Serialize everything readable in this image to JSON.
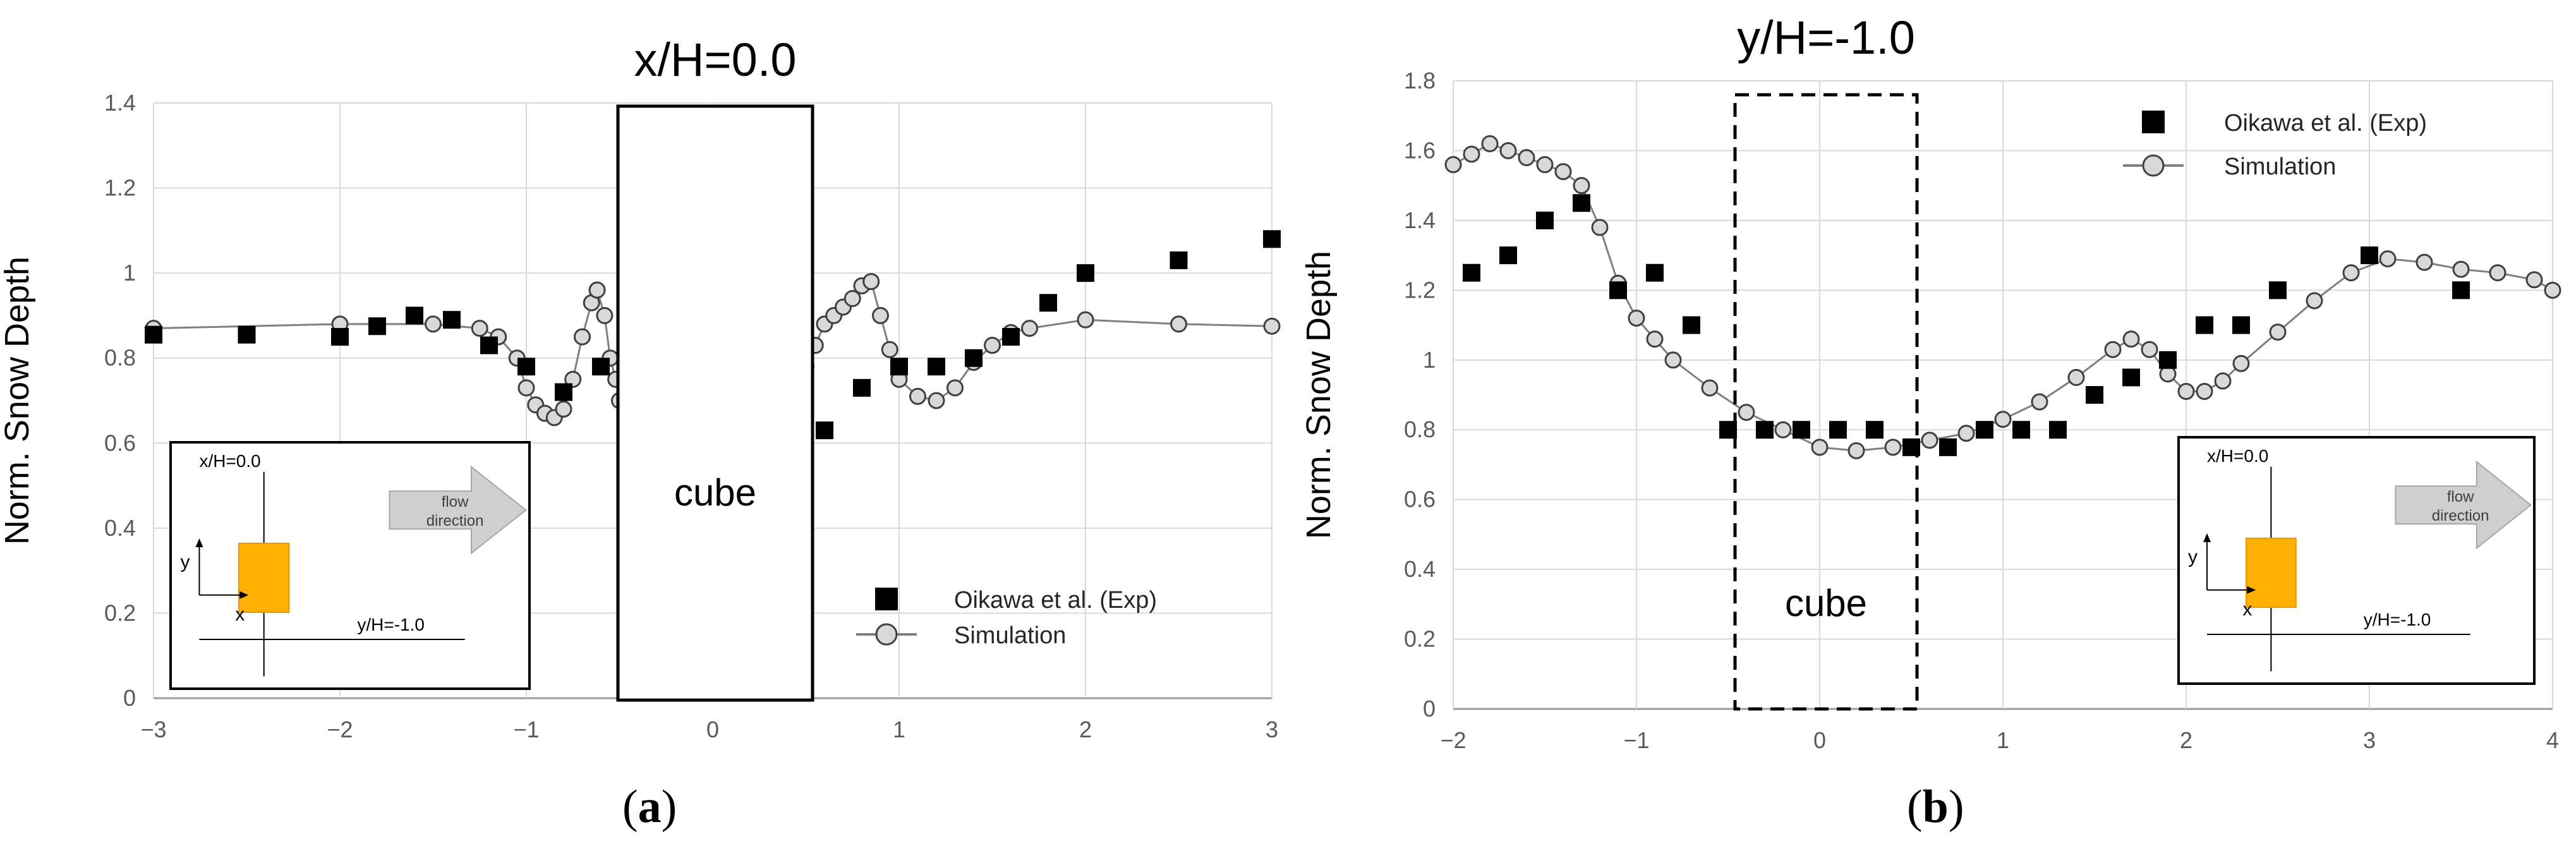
{
  "figure": {
    "panel_a_label": "a",
    "panel_b_label": "b"
  },
  "chart_data": [
    {
      "type": "scatter",
      "panel": "a",
      "title": "x/H=0.0",
      "xlabel": "",
      "ylabel": "Norm. Snow Depth",
      "xlim": [
        -3,
        3
      ],
      "ylim": [
        0,
        1.4
      ],
      "xticks": [
        -3,
        -2,
        -1,
        0,
        1,
        2,
        3
      ],
      "xtick_labels": [
        "−3",
        "−2",
        "−1",
        "0",
        "1",
        "2",
        "3"
      ],
      "yticks": [
        0,
        0.2,
        0.4,
        0.6,
        0.8,
        1,
        1.2,
        1.4
      ],
      "ytick_labels": [
        "0",
        "0.2",
        "0.4",
        "0.6",
        "0.8",
        "1",
        "1.2",
        "1.4"
      ],
      "grid": true,
      "legend": [
        {
          "name": "Oikawa et al. (Exp)",
          "marker": "square"
        },
        {
          "name": "Simulation",
          "marker": "circle-line"
        }
      ],
      "legend_position": "lower-right",
      "obstacle": {
        "label": "cube",
        "x_range": [
          -0.5,
          0.5
        ],
        "style": "solid"
      },
      "inset": {
        "vertical_label": "x/H=0.0",
        "horizontal_label": "y/H=-1.0",
        "y_axis": "y",
        "x_axis": "x",
        "arrow_label_1": "flow",
        "arrow_label_2": "direction"
      },
      "series": [
        {
          "name": "Oikawa et al. (Exp)",
          "x": [
            -3.0,
            -2.5,
            -2.0,
            -1.8,
            -1.6,
            -1.4,
            -1.2,
            -1.0,
            -0.8,
            -0.6,
            0.6,
            0.8,
            1.0,
            1.2,
            1.4,
            1.6,
            1.8,
            2.0,
            2.5,
            3.0
          ],
          "y": [
            0.855,
            0.855,
            0.85,
            0.875,
            0.9,
            0.89,
            0.83,
            0.78,
            0.72,
            0.78,
            0.63,
            0.73,
            0.78,
            0.78,
            0.8,
            0.85,
            0.93,
            1.0,
            1.03,
            1.08
          ]
        },
        {
          "name": "Simulation",
          "x": [
            -3.0,
            -2.0,
            -1.5,
            -1.25,
            -1.15,
            -1.05,
            -1.0,
            -0.95,
            -0.9,
            -0.85,
            -0.8,
            -0.75,
            -0.7,
            -0.65,
            -0.62,
            -0.58,
            -0.55,
            -0.52,
            -0.5,
            0.5,
            0.55,
            0.6,
            0.65,
            0.7,
            0.75,
            0.8,
            0.85,
            0.9,
            0.95,
            1.0,
            1.1,
            1.2,
            1.3,
            1.4,
            1.5,
            1.6,
            1.7,
            2.0,
            2.5,
            3.0
          ],
          "y": [
            0.87,
            0.88,
            0.88,
            0.87,
            0.85,
            0.8,
            0.73,
            0.69,
            0.67,
            0.66,
            0.68,
            0.75,
            0.85,
            0.93,
            0.96,
            0.9,
            0.8,
            0.75,
            0.7,
            0.78,
            0.83,
            0.88,
            0.9,
            0.92,
            0.94,
            0.97,
            0.98,
            0.9,
            0.82,
            0.75,
            0.71,
            0.7,
            0.73,
            0.79,
            0.83,
            0.86,
            0.87,
            0.89,
            0.88,
            0.875
          ]
        }
      ]
    },
    {
      "type": "scatter",
      "panel": "b",
      "title": "y/H=-1.0",
      "xlabel": "",
      "ylabel": "Norm. Snow Depth",
      "xlim": [
        -2,
        4
      ],
      "ylim": [
        0,
        1.8
      ],
      "xticks": [
        -2,
        -1,
        0,
        1,
        2,
        3,
        4
      ],
      "xtick_labels": [
        "−2",
        "−1",
        "0",
        "1",
        "2",
        "3",
        "4"
      ],
      "yticks": [
        0,
        0.2,
        0.4,
        0.6,
        0.8,
        1,
        1.2,
        1.4,
        1.6,
        1.8
      ],
      "ytick_labels": [
        "0",
        "0.2",
        "0.4",
        "0.6",
        "0.8",
        "1",
        "1.2",
        "1.4",
        "1.6",
        "1.8"
      ],
      "grid": true,
      "legend": [
        {
          "name": "Oikawa et al. (Exp)",
          "marker": "square"
        },
        {
          "name": "Simulation",
          "marker": "circle-line"
        }
      ],
      "legend_position": "top-right",
      "obstacle": {
        "label": "cube",
        "x_range": [
          -0.5,
          0.5
        ],
        "style": "dashed"
      },
      "inset": {
        "vertical_label": "x/H=0.0",
        "horizontal_label": "y/H=-1.0",
        "y_axis": "y",
        "x_axis": "x",
        "arrow_label_1": "flow",
        "arrow_label_2": "direction"
      },
      "series": [
        {
          "name": "Oikawa et al. (Exp)",
          "x": [
            -1.9,
            -1.7,
            -1.5,
            -1.3,
            -1.1,
            -0.9,
            -0.7,
            -0.5,
            -0.3,
            -0.1,
            0.1,
            0.3,
            0.5,
            0.7,
            0.9,
            1.1,
            1.3,
            1.5,
            1.7,
            1.9,
            2.1,
            2.3,
            2.5,
            3.0,
            3.5
          ],
          "y": [
            1.25,
            1.3,
            1.4,
            1.45,
            1.2,
            1.25,
            1.1,
            0.8,
            0.8,
            0.8,
            0.8,
            0.8,
            0.75,
            0.75,
            0.8,
            0.8,
            0.8,
            0.9,
            0.95,
            1.0,
            1.1,
            1.1,
            1.2,
            1.3,
            1.2
          ]
        },
        {
          "name": "Simulation",
          "x": [
            -2.0,
            -1.9,
            -1.8,
            -1.7,
            -1.6,
            -1.5,
            -1.4,
            -1.3,
            -1.2,
            -1.1,
            -1.0,
            -0.9,
            -0.8,
            -0.6,
            -0.4,
            -0.2,
            0.0,
            0.2,
            0.4,
            0.6,
            0.8,
            1.0,
            1.2,
            1.4,
            1.6,
            1.7,
            1.8,
            1.9,
            2.0,
            2.1,
            2.2,
            2.3,
            2.5,
            2.7,
            2.9,
            3.1,
            3.3,
            3.5,
            3.7,
            3.9,
            4.0
          ],
          "y": [
            1.56,
            1.59,
            1.62,
            1.6,
            1.58,
            1.56,
            1.54,
            1.5,
            1.38,
            1.22,
            1.12,
            1.06,
            1.0,
            0.92,
            0.85,
            0.8,
            0.75,
            0.74,
            0.75,
            0.77,
            0.79,
            0.83,
            0.88,
            0.95,
            1.03,
            1.06,
            1.03,
            0.96,
            0.91,
            0.91,
            0.94,
            0.99,
            1.08,
            1.17,
            1.25,
            1.29,
            1.28,
            1.26,
            1.25,
            1.23,
            1.2
          ]
        }
      ]
    }
  ]
}
